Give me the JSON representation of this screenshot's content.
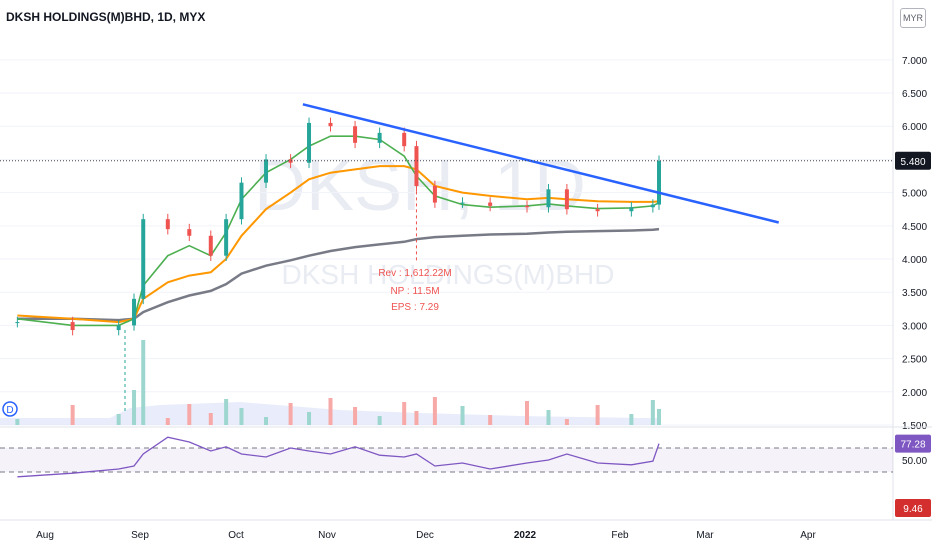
{
  "header": {
    "title": "DKSH HOLDINGS(M)BHD, 1D, MYX",
    "currency": "MYR"
  },
  "watermark": {
    "ticker": "DKSH, 1D",
    "name": "DKSH HOLDINGS(M)BHD"
  },
  "earnings": {
    "marker": "D",
    "rev": "Rev : 1,612.22M",
    "np": "NP  : 11.5M",
    "eps": "EPS : 7.29"
  },
  "colors": {
    "up": "#26a69a",
    "down": "#ef5350",
    "ema_short": "#4caf50",
    "ema_mid": "#ff9800",
    "ema_long": "#787b86",
    "trendline": "#2962ff",
    "rsi": "#7e57c2",
    "volume_up": "#9dd5cf",
    "volume_down": "#f7a9a7"
  },
  "chart_data": [
    {
      "type": "candlestick",
      "title": "DKSH HOLDINGS(M)BHD, 1D, MYX",
      "x_ticks": [
        "Aug",
        "Sep",
        "Oct",
        "Nov",
        "Dec",
        "2022",
        "Feb",
        "Mar",
        "Apr"
      ],
      "y_ticks": [
        "7.000",
        "6.500",
        "6.000",
        "5.500",
        "5.000",
        "4.500",
        "4.000",
        "3.500",
        "3.000",
        "2.500",
        "2.000",
        "1.500"
      ],
      "ylim": [
        1.5,
        7.6
      ],
      "last_price": "5.480",
      "price_path": [
        {
          "date": "Jul 23",
          "close": 3.05
        },
        {
          "date": "Aug 10",
          "close": 2.93
        },
        {
          "date": "Aug 25",
          "close": 3.0
        },
        {
          "date": "Aug 30",
          "close": 3.4
        },
        {
          "date": "Sep 2",
          "close": 4.6
        },
        {
          "date": "Sep 10",
          "close": 4.45
        },
        {
          "date": "Sep 17",
          "close": 4.35
        },
        {
          "date": "Sep 24",
          "close": 4.05
        },
        {
          "date": "Sep 29",
          "close": 4.6
        },
        {
          "date": "Oct 4",
          "close": 5.15
        },
        {
          "date": "Oct 12",
          "close": 5.5
        },
        {
          "date": "Oct 20",
          "close": 5.45
        },
        {
          "date": "Oct 26",
          "close": 6.05
        },
        {
          "date": "Nov 2",
          "close": 6.0
        },
        {
          "date": "Nov 10",
          "close": 5.75
        },
        {
          "date": "Nov 18",
          "close": 5.9
        },
        {
          "date": "Nov 26",
          "close": 5.7
        },
        {
          "date": "Nov 30",
          "close": 5.1
        },
        {
          "date": "Dec 6",
          "close": 4.85
        },
        {
          "date": "Dec 15",
          "close": 4.85
        },
        {
          "date": "Dec 24",
          "close": 4.8
        },
        {
          "date": "Jan 5",
          "close": 4.78
        },
        {
          "date": "Jan 12",
          "close": 5.05
        },
        {
          "date": "Jan 18",
          "close": 4.75
        },
        {
          "date": "Jan 28",
          "close": 4.72
        },
        {
          "date": "Feb 8",
          "close": 4.78
        },
        {
          "date": "Feb 15",
          "close": 4.82
        },
        {
          "date": "Feb 17",
          "close": 5.48
        }
      ],
      "ema_short": [
        3.1,
        3.0,
        3.0,
        3.1,
        3.6,
        4.05,
        4.2,
        4.05,
        4.4,
        4.9,
        5.3,
        5.5,
        5.7,
        5.85,
        5.85,
        5.8,
        5.55,
        5.25,
        4.95,
        4.82,
        4.78,
        4.8,
        4.83,
        4.8,
        4.76,
        4.77,
        4.8,
        4.85
      ],
      "ema_mid": [
        3.15,
        3.1,
        3.05,
        3.1,
        3.4,
        3.65,
        3.75,
        3.8,
        4.0,
        4.35,
        4.75,
        5.0,
        5.2,
        5.3,
        5.35,
        5.4,
        5.4,
        5.35,
        5.1,
        5.0,
        4.95,
        4.9,
        4.92,
        4.9,
        4.87,
        4.86,
        4.86,
        4.87
      ],
      "ema_long": [
        3.1,
        3.1,
        3.08,
        3.1,
        3.2,
        3.35,
        3.45,
        3.52,
        3.62,
        3.78,
        3.9,
        3.98,
        4.05,
        4.12,
        4.18,
        4.22,
        4.26,
        4.3,
        4.33,
        4.35,
        4.37,
        4.38,
        4.4,
        4.41,
        4.42,
        4.43,
        4.44,
        4.45
      ],
      "trendline": [
        {
          "date": "Oct 24",
          "price": 6.33
        },
        {
          "date": "Mar 28",
          "price": 4.55
        }
      ],
      "earnings_date": "Nov 30"
    },
    {
      "type": "line",
      "name": "RSI",
      "y_ticks": [
        "50.00"
      ],
      "bands": [
        30,
        70
      ],
      "last_value": "77.28",
      "values": [
        22,
        28,
        35,
        40,
        60,
        88,
        80,
        65,
        72,
        60,
        55,
        70,
        65,
        60,
        72,
        58,
        55,
        60,
        40,
        45,
        35,
        45,
        50,
        60,
        45,
        42,
        48,
        77.28
      ]
    },
    {
      "type": "label",
      "value": "9.46"
    }
  ]
}
